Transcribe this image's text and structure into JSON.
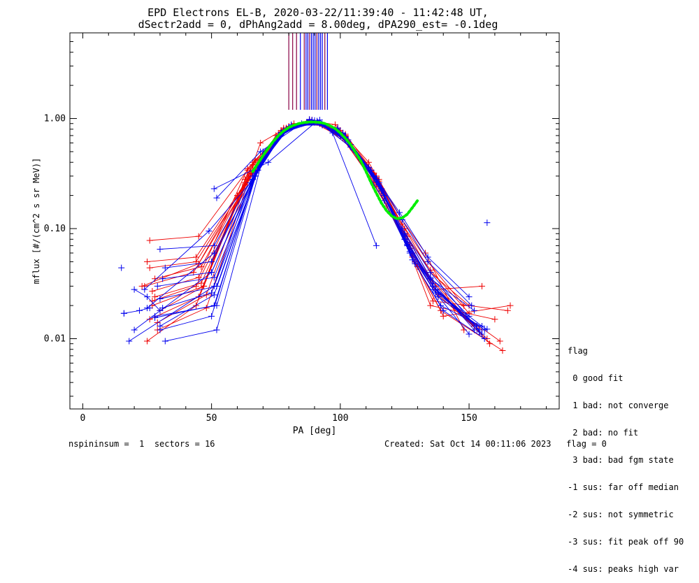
{
  "chart_data": {
    "type": "line",
    "title_line1": "EPD Electrons EL-B, 2020-03-22/11:39:40 - 11:42:48 UT,",
    "title_line2": "dSectr2add = 0, dPhAng2add = 8.00deg, dPA290_est=  -0.1deg",
    "xlabel": "PA [deg]",
    "ylabel": "mflux [#/(cm^2 s sr MeV)]",
    "xlim": [
      -5,
      185
    ],
    "ylim": [
      0.0023,
      6.0
    ],
    "yscale": "log",
    "x_ticks": [
      0,
      50,
      100,
      150
    ],
    "x_tick_labels": [
      "0",
      "50",
      "100",
      "150"
    ],
    "y_ticks": [
      0.01,
      0.1,
      1.0
    ],
    "y_tick_labels": [
      "0.01",
      "0.10",
      "1.00"
    ],
    "colors": {
      "red": "#ee0000",
      "blue": "#0000ee",
      "green": "#00ee00",
      "purple": "#880044"
    },
    "vertical_markers": {
      "x": [
        80,
        81.5,
        83,
        84.5,
        86,
        86.7,
        87.4,
        88.1,
        88.8,
        89.5,
        90.2,
        90.9,
        91.6,
        92.3,
        93,
        94,
        95
      ],
      "colors": [
        "#880044",
        "#880044",
        "#880044",
        "#0000ee",
        "#880044",
        "#0000ee",
        "#0000ee",
        "#880044",
        "#0000ee",
        "#0000ee",
        "#0000ee",
        "#880044",
        "#0000ee",
        "#0000ee",
        "#0000ee",
        "#880044",
        "#0000ee"
      ],
      "y_from": 1.2,
      "y_to": 6.0
    },
    "series": [
      {
        "color": "red",
        "x": [
          26,
          45,
          64,
          78,
          90,
          100,
          113,
          125,
          135,
          150
        ],
        "y": [
          0.078,
          0.085,
          0.34,
          0.82,
          0.94,
          0.76,
          0.3,
          0.09,
          0.042,
          0.017
        ]
      },
      {
        "color": "red",
        "x": [
          25,
          44,
          63,
          77,
          89,
          101,
          114,
          126,
          136,
          152
        ],
        "y": [
          0.05,
          0.055,
          0.26,
          0.78,
          0.95,
          0.7,
          0.26,
          0.075,
          0.03,
          0.013
        ]
      },
      {
        "color": "red",
        "x": [
          28,
          46,
          65,
          79,
          91,
          102,
          115,
          127,
          137,
          155
        ],
        "y": [
          0.035,
          0.045,
          0.3,
          0.8,
          0.92,
          0.72,
          0.28,
          0.07,
          0.028,
          0.012
        ]
      },
      {
        "color": "red",
        "x": [
          24,
          43,
          62,
          76,
          88,
          99,
          112,
          124,
          134,
          148
        ],
        "y": [
          0.03,
          0.04,
          0.22,
          0.72,
          0.98,
          0.82,
          0.34,
          0.11,
          0.05,
          0.02
        ]
      },
      {
        "color": "red",
        "x": [
          27,
          47,
          66,
          80,
          92,
          103,
          116,
          128,
          138,
          157
        ],
        "y": [
          0.02,
          0.03,
          0.38,
          0.85,
          0.9,
          0.64,
          0.22,
          0.06,
          0.025,
          0.01
        ]
      },
      {
        "color": "red",
        "x": [
          26,
          45,
          64,
          78,
          90,
          100,
          114,
          126,
          135,
          160
        ],
        "y": [
          0.015,
          0.024,
          0.32,
          0.8,
          0.96,
          0.7,
          0.25,
          0.07,
          0.02,
          0.015
        ]
      },
      {
        "color": "red",
        "x": [
          29,
          48,
          67,
          81,
          93,
          104,
          117,
          129,
          139,
          163
        ],
        "y": [
          0.012,
          0.019,
          0.42,
          0.86,
          0.88,
          0.58,
          0.2,
          0.05,
          0.018,
          0.0078
        ]
      },
      {
        "color": "red",
        "x": [
          25,
          44,
          63,
          77,
          89,
          101,
          113,
          125,
          136,
          165
        ],
        "y": [
          0.0095,
          0.02,
          0.28,
          0.76,
          0.94,
          0.66,
          0.26,
          0.08,
          0.022,
          0.018
        ]
      },
      {
        "color": "red",
        "x": [
          28,
          46,
          65,
          79,
          91,
          102,
          115,
          127,
          137,
          158
        ],
        "y": [
          0.024,
          0.032,
          0.3,
          0.82,
          0.93,
          0.7,
          0.24,
          0.066,
          0.03,
          0.009
        ]
      },
      {
        "color": "red",
        "x": [
          27,
          45,
          64,
          78,
          90,
          101,
          114,
          126,
          135,
          153
        ],
        "y": [
          0.027,
          0.036,
          0.35,
          0.79,
          0.95,
          0.73,
          0.3,
          0.085,
          0.035,
          0.0125
        ]
      },
      {
        "color": "red",
        "x": [
          30,
          47,
          66,
          80,
          92,
          103,
          116,
          128,
          138,
          162
        ],
        "y": [
          0.018,
          0.03,
          0.4,
          0.84,
          0.9,
          0.62,
          0.22,
          0.055,
          0.024,
          0.0095
        ]
      },
      {
        "color": "red",
        "x": [
          26,
          44,
          63,
          77,
          89,
          100,
          113,
          125,
          135,
          150
        ],
        "y": [
          0.044,
          0.05,
          0.25,
          0.74,
          0.97,
          0.78,
          0.32,
          0.1,
          0.04,
          0.02
        ]
      },
      {
        "color": "red",
        "x": [
          23,
          45,
          60,
          75,
          88,
          98,
          111,
          124,
          133,
          148
        ],
        "y": [
          0.03,
          0.048,
          0.2,
          0.7,
          0.96,
          0.88,
          0.4,
          0.12,
          0.06,
          0.012
        ]
      },
      {
        "color": "red",
        "x": [
          29,
          48,
          69,
          82,
          94,
          105,
          118,
          130,
          140,
          166
        ],
        "y": [
          0.014,
          0.025,
          0.6,
          0.9,
          0.86,
          0.52,
          0.16,
          0.045,
          0.016,
          0.02
        ]
      },
      {
        "color": "red",
        "x": [
          27,
          44,
          65,
          79,
          91,
          102,
          115,
          127,
          137,
          155
        ],
        "y": [
          0.022,
          0.03,
          0.3,
          0.82,
          0.93,
          0.69,
          0.27,
          0.07,
          0.028,
          0.03
        ]
      },
      {
        "color": "blue",
        "x": [
          30,
          51,
          67,
          78,
          90,
          101,
          113,
          124,
          135,
          155
        ],
        "y": [
          0.065,
          0.07,
          0.32,
          0.75,
          0.92,
          0.73,
          0.3,
          0.1,
          0.04,
          0.011
        ]
      },
      {
        "color": "blue",
        "x": [
          32,
          50,
          66,
          77,
          89,
          100,
          114,
          125,
          136,
          152
        ],
        "y": [
          0.044,
          0.05,
          0.28,
          0.72,
          0.95,
          0.7,
          0.27,
          0.08,
          0.032,
          0.012
        ]
      },
      {
        "color": "blue",
        "x": [
          31,
          50,
          68,
          79,
          91,
          102,
          115,
          126,
          137,
          154
        ],
        "y": [
          0.035,
          0.04,
          0.34,
          0.8,
          0.93,
          0.68,
          0.25,
          0.072,
          0.028,
          0.0115
        ]
      },
      {
        "color": "blue",
        "x": [
          29,
          51,
          67,
          78,
          90,
          101,
          114,
          125,
          135,
          150
        ],
        "y": [
          0.03,
          0.036,
          0.3,
          0.77,
          0.96,
          0.74,
          0.29,
          0.09,
          0.036,
          0.016
        ]
      },
      {
        "color": "blue",
        "x": [
          30,
          52,
          69,
          80,
          92,
          103,
          116,
          127,
          138,
          156
        ],
        "y": [
          0.023,
          0.03,
          0.4,
          0.83,
          0.9,
          0.62,
          0.22,
          0.06,
          0.024,
          0.012
        ]
      },
      {
        "color": "blue",
        "x": [
          31,
          50,
          66,
          77,
          89,
          100,
          113,
          125,
          136,
          153
        ],
        "y": [
          0.019,
          0.026,
          0.3,
          0.75,
          0.97,
          0.72,
          0.3,
          0.086,
          0.03,
          0.013
        ]
      },
      {
        "color": "blue",
        "x": [
          28,
          51,
          68,
          79,
          91,
          102,
          115,
          126,
          137,
          150
        ],
        "y": [
          0.0155,
          0.02,
          0.36,
          0.8,
          0.93,
          0.68,
          0.26,
          0.07,
          0.026,
          0.011
        ]
      },
      {
        "color": "blue",
        "x": [
          30,
          50,
          67,
          78,
          90,
          101,
          114,
          125,
          135,
          152
        ],
        "y": [
          0.012,
          0.016,
          0.32,
          0.78,
          0.95,
          0.71,
          0.28,
          0.08,
          0.035,
          0.018
        ]
      },
      {
        "color": "blue",
        "x": [
          32,
          52,
          70,
          81,
          93,
          104,
          117,
          128,
          139,
          157
        ],
        "y": [
          0.0095,
          0.012,
          0.44,
          0.86,
          0.88,
          0.58,
          0.2,
          0.052,
          0.02,
          0.0122
        ]
      },
      {
        "color": "blue",
        "x": [
          18,
          51,
          69,
          80,
          92,
          103,
          116,
          127,
          138,
          155
        ],
        "y": [
          0.0095,
          0.03,
          0.38,
          0.82,
          0.92,
          0.64,
          0.23,
          0.062,
          0.026,
          0.013
        ]
      },
      {
        "color": "blue",
        "x": [
          20,
          50,
          66,
          76,
          88,
          99,
          112,
          124,
          134,
          151
        ],
        "y": [
          0.012,
          0.04,
          0.28,
          0.7,
          0.97,
          0.8,
          0.34,
          0.12,
          0.05,
          0.02
        ]
      },
      {
        "color": "blue",
        "x": [
          25,
          51,
          67,
          78,
          90,
          101,
          114,
          126,
          136,
          154
        ],
        "y": [
          0.019,
          0.06,
          0.3,
          0.76,
          0.94,
          0.7,
          0.28,
          0.075,
          0.03,
          0.012
        ]
      },
      {
        "color": "blue",
        "x": [
          24,
          49,
          65,
          76,
          88,
          99,
          111,
          123,
          134,
          150
        ],
        "y": [
          0.028,
          0.095,
          0.26,
          0.68,
          0.98,
          0.82,
          0.36,
          0.14,
          0.055,
          0.024
        ]
      },
      {
        "color": "blue",
        "x": [
          28,
          52,
          70,
          81,
          93,
          104,
          117,
          129,
          140,
          156
        ],
        "y": [
          0.016,
          0.02,
          0.5,
          0.88,
          0.87,
          0.55,
          0.18,
          0.048,
          0.018,
          0.01
        ]
      },
      {
        "color": "blue",
        "x": [
          30,
          51,
          68,
          79,
          91,
          102,
          115,
          126,
          136,
          153
        ],
        "y": [
          0.013,
          0.025,
          0.34,
          0.8,
          0.93,
          0.67,
          0.26,
          0.07,
          0.028,
          0.013
        ]
      }
    ],
    "extra_blue_segments": [
      {
        "x": [
          51,
          72,
          91,
          97,
          114
        ],
        "y": [
          0.23,
          0.4,
          0.95,
          0.74,
          0.07
        ]
      },
      {
        "x": [
          52,
          69,
          85,
          92,
          100
        ],
        "y": [
          0.19,
          0.5,
          0.9,
          0.97,
          0.72
        ]
      },
      {
        "x": [
          20,
          25,
          30
        ],
        "y": [
          0.028,
          0.024,
          0.018
        ]
      },
      {
        "x": [
          16,
          22,
          26
        ],
        "y": [
          0.017,
          0.018,
          0.019
        ]
      }
    ],
    "isolated_blue_points": [
      {
        "x": 15,
        "y": 0.044
      },
      {
        "x": 16,
        "y": 0.017
      },
      {
        "x": 157,
        "y": 0.113
      }
    ],
    "fit_curve": {
      "color": "green",
      "x": [
        66,
        68,
        70,
        72,
        74,
        76,
        78,
        80,
        82,
        84,
        86,
        88,
        90,
        92,
        94,
        96,
        98,
        100,
        102,
        104,
        106,
        108,
        110,
        112,
        114,
        116,
        118,
        120,
        122,
        124,
        126,
        128,
        130
      ],
      "y": [
        0.33,
        0.39,
        0.46,
        0.54,
        0.62,
        0.7,
        0.77,
        0.83,
        0.87,
        0.9,
        0.92,
        0.93,
        0.93,
        0.92,
        0.9,
        0.86,
        0.81,
        0.74,
        0.66,
        0.58,
        0.49,
        0.41,
        0.33,
        0.26,
        0.21,
        0.17,
        0.145,
        0.13,
        0.123,
        0.125,
        0.135,
        0.155,
        0.18
      ]
    }
  },
  "legend": {
    "title": "flag",
    "items": [
      " 0 good fit",
      " 1 bad: not converge",
      " 2 bad: no fit",
      " 3 bad: bad fgm state",
      "-1 sus: far off median",
      "-2 sus: not symmetric",
      "-3 sus: fit peak off 90",
      "-4 sus: peaks high var"
    ]
  },
  "footer": {
    "left": "nspininsum =  1  sectors = 16",
    "right": "Created: Sat Oct 14 00:11:06 2023   flag = 0"
  }
}
